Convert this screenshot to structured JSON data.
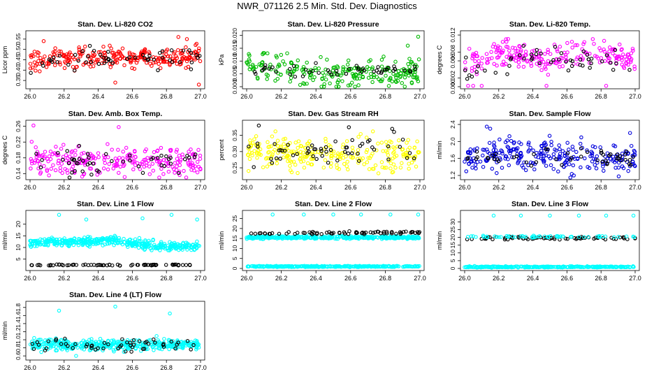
{
  "main_title": "NWR_071126  2.5 Min. Std. Dev. Diagnostics",
  "chart_data": [
    {
      "type": "scatter",
      "title": "Stan. Dev. Li-820 CO2",
      "ylabel": "Licor ppm",
      "xlim": [
        26.0,
        27.0
      ],
      "ylim": [
        0.32,
        0.58
      ],
      "x_ticks": [
        "26.0",
        "26.2",
        "26.4",
        "26.6",
        "26.8",
        "27.0"
      ],
      "y_ticks": [
        0.35,
        0.4,
        0.45,
        0.5,
        0.55
      ],
      "y_tick_labels": [
        "0.35",
        "0.40",
        "0.45",
        "0.50",
        "0.55"
      ],
      "series": [
        {
          "name": "primary",
          "color": "#ff0000",
          "center": [
            0.45,
            0.47
          ],
          "spread": 0.025,
          "n": 260,
          "x": [],
          "y": []
        },
        {
          "name": "reference",
          "color": "#000000",
          "center": [
            0.44,
            0.47
          ],
          "spread": 0.025,
          "n": 55,
          "x": [],
          "y": []
        }
      ],
      "outliers": {
        "x": [
          26.08,
          26.5,
          26.87,
          26.92,
          26.99
        ],
        "y": [
          0.54,
          0.34,
          0.56,
          0.55,
          0.33
        ],
        "color": "#ff0000"
      }
    },
    {
      "type": "scatter",
      "title": "Stan. Dev. Li-820 Pressure",
      "ylabel": "kPa",
      "xlim": [
        26.0,
        27.0
      ],
      "ylim": [
        0.0,
        0.021
      ],
      "x_ticks": [
        "26.0",
        "26.2",
        "26.4",
        "26.6",
        "26.8",
        "27.0"
      ],
      "y_ticks": [
        0.0,
        0.005,
        0.01,
        0.015,
        0.02
      ],
      "y_tick_labels": [
        "0.000",
        "0.005",
        "0.010",
        "0.015",
        "0.020"
      ],
      "series": [
        {
          "name": "primary",
          "color": "#00bb00",
          "center": [
            0.008,
            0.004,
            0.006
          ],
          "spread": 0.0028,
          "n": 240,
          "x": [],
          "y": []
        },
        {
          "name": "reference",
          "color": "#000000",
          "center": [
            0.007,
            0.006,
            0.007
          ],
          "spread": 0.0012,
          "n": 50,
          "x": [],
          "y": []
        }
      ],
      "outliers": {
        "x": [
          26.12,
          26.17,
          26.93,
          26.99
        ],
        "y": [
          0.013,
          0.012,
          0.016,
          0.0195
        ],
        "color": "#00bb00"
      }
    },
    {
      "type": "scatter",
      "title": "Stan. Dev. Li-820 Temp.",
      "ylabel": "degrees C",
      "xlim": [
        26.0,
        27.0
      ],
      "ylim": [
        0.0,
        0.0125
      ],
      "x_ticks": [
        "26.0",
        "26.2",
        "26.4",
        "26.6",
        "26.8",
        "27.0"
      ],
      "y_ticks": [
        0.0,
        0.002,
        0.006,
        0.008,
        0.012
      ],
      "y_tick_labels": [
        "0.000",
        "0.002",
        "0.006",
        "0.008",
        "0.012"
      ],
      "series": [
        {
          "name": "primary",
          "color": "#ff00ff",
          "center": [
            0.005,
            0.008,
            0.006,
            0.009,
            0.006
          ],
          "spread": 0.0014,
          "n": 230,
          "x": [],
          "y": []
        },
        {
          "name": "reference",
          "color": "#000000",
          "center": [
            0.004,
            0.007,
            0.006
          ],
          "spread": 0.0015,
          "n": 50,
          "x": [],
          "y": []
        }
      ],
      "outliers": {
        "x": [
          26.02,
          26.05,
          26.1,
          26.48,
          26.83
        ],
        "y": [
          0.0002,
          0.0002,
          0.0002,
          0.0002,
          0.0002
        ],
        "color": "#ff00ff"
      }
    },
    {
      "type": "scatter",
      "title": "Stan. Dev. Amb. Box Temp.",
      "ylabel": "degrees C",
      "xlim": [
        26.0,
        27.0
      ],
      "ylim": [
        0.13,
        0.27
      ],
      "x_ticks": [
        "26.0",
        "26.2",
        "26.4",
        "26.6",
        "26.8",
        "27.0"
      ],
      "y_ticks": [
        0.14,
        0.18,
        0.22,
        0.26
      ],
      "y_tick_labels": [
        "0.14",
        "0.18",
        "0.22",
        "0.26"
      ],
      "series": [
        {
          "name": "primary",
          "color": "#ff00ff",
          "center": [
            0.175,
            0.17
          ],
          "spread": 0.02,
          "n": 250,
          "x": [],
          "y": []
        },
        {
          "name": "reference",
          "color": "#000000",
          "center": [
            0.165,
            0.17
          ],
          "spread": 0.015,
          "n": 50,
          "x": [],
          "y": []
        }
      ],
      "outliers": {
        "x": [
          26.02,
          26.52,
          26.06
        ],
        "y": [
          0.262,
          0.258,
          0.14
        ],
        "color": "#ff00ff"
      }
    },
    {
      "type": "scatter",
      "title": "Stan. Dev. Gas Stream RH",
      "ylabel": "percent",
      "xlim": [
        26.0,
        27.0
      ],
      "ylim": [
        0.22,
        0.39
      ],
      "x_ticks": [
        "26.0",
        "26.2",
        "26.4",
        "26.6",
        "26.8",
        "27.0"
      ],
      "y_ticks": [
        0.25,
        0.3,
        0.35
      ],
      "y_tick_labels": [
        "0.25",
        "0.30",
        "0.35"
      ],
      "series": [
        {
          "name": "primary",
          "color": "#ffff00",
          "center": [
            0.3,
            0.29
          ],
          "spread": 0.025,
          "n": 260,
          "x": [],
          "y": []
        },
        {
          "name": "reference",
          "color": "#000000",
          "center": [
            0.29,
            0.3
          ],
          "spread": 0.025,
          "n": 55,
          "x": [],
          "y": []
        }
      ],
      "outliers": {
        "x": [
          26.07,
          26.59,
          26.84
        ],
        "y": [
          0.38,
          0.375,
          0.37
        ],
        "color": "#000000"
      }
    },
    {
      "type": "scatter",
      "title": "Stan. Dev. Sample Flow",
      "ylabel": "ml/min",
      "xlim": [
        26.0,
        27.0
      ],
      "ylim": [
        1.15,
        2.45
      ],
      "x_ticks": [
        "26.0",
        "26.2",
        "26.4",
        "26.6",
        "26.8",
        "27.0"
      ],
      "y_ticks": [
        1.2,
        1.6,
        2.0,
        2.4
      ],
      "y_tick_labels": [
        "1.2",
        "1.6",
        "2.0",
        "2.4"
      ],
      "series": [
        {
          "name": "primary",
          "color": "#0000dd",
          "center": [
            1.55,
            1.75,
            1.65,
            1.6,
            1.6
          ],
          "spread": 0.17,
          "n": 270,
          "x": [],
          "y": []
        },
        {
          "name": "reference",
          "color": "#000000",
          "center": [
            1.6,
            1.65
          ],
          "spread": 0.12,
          "n": 50,
          "x": [],
          "y": []
        }
      ],
      "outliers": {
        "x": [
          26.13,
          26.15,
          26.62,
          26.64,
          26.97
        ],
        "y": [
          2.35,
          2.3,
          1.15,
          1.2,
          2.2
        ],
        "color": "#0000dd"
      }
    },
    {
      "type": "scatter",
      "title": "Stan. Dev. Line 1 Flow",
      "ylabel": "ml/min",
      "xlim": [
        26.0,
        27.0
      ],
      "ylim": [
        1,
        25
      ],
      "x_ticks": [
        "26.0",
        "26.2",
        "26.4",
        "26.6",
        "26.8",
        "27.0"
      ],
      "y_ticks": [
        5,
        10,
        15,
        20
      ],
      "y_tick_labels": [
        "5",
        "10",
        "15",
        "20"
      ],
      "series": [
        {
          "name": "primary",
          "color": "#00ffff",
          "center": [
            12,
            12.5,
            13,
            10.5,
            10.5
          ],
          "spread": 0.9,
          "n": 420,
          "x": [],
          "y": []
        },
        {
          "name": "reference",
          "color": "#000000",
          "center": [
            2.5
          ],
          "spread": 0.15,
          "n": 70,
          "x": [],
          "y": []
        }
      ],
      "outliers": {
        "x": [
          26.17,
          26.33,
          26.66,
          26.83,
          26.98
        ],
        "y": [
          24,
          22,
          22.5,
          24,
          22
        ],
        "color": "#00ffff"
      }
    },
    {
      "type": "scatter",
      "title": "Stan. Dev. Line 2 Flow",
      "ylabel": "ml/min",
      "xlim": [
        26.0,
        27.0
      ],
      "ylim": [
        0,
        28
      ],
      "x_ticks": [
        "26.0",
        "26.2",
        "26.4",
        "26.6",
        "26.8",
        "27.0"
      ],
      "y_ticks": [
        0,
        5,
        10,
        15,
        20,
        25
      ],
      "y_tick_labels": [
        "0",
        "5",
        "10",
        "15",
        "20",
        "25"
      ],
      "series": [
        {
          "name": "primary",
          "color": "#00ffff",
          "center": [
            15.5
          ],
          "spread": 0.35,
          "n": 380,
          "x": [],
          "y": []
        },
        {
          "name": "reference",
          "color": "#000000",
          "center": [
            17.5,
            18.2
          ],
          "spread": 0.35,
          "n": 70,
          "x": [],
          "y": []
        },
        {
          "name": "low",
          "color": "#00ffff",
          "center": [
            1.0
          ],
          "spread": 0.15,
          "n": 300,
          "x": [],
          "y": []
        }
      ],
      "outliers": {
        "x": [
          26.15,
          26.33,
          26.5,
          26.66,
          26.83,
          26.99
        ],
        "y": [
          27,
          27,
          27,
          27,
          27,
          27
        ],
        "color": "#00ffff"
      }
    },
    {
      "type": "scatter",
      "title": "Stan. Dev. Line 3 Flow",
      "ylabel": "ml/min",
      "xlim": [
        26.0,
        27.0
      ],
      "ylim": [
        0,
        36
      ],
      "x_ticks": [
        "26.0",
        "26.2",
        "26.4",
        "26.6",
        "26.8",
        "27.0"
      ],
      "y_ticks": [
        0,
        5,
        10,
        15,
        20,
        25,
        30
      ],
      "y_tick_labels": [
        "0",
        "5",
        "10",
        "15",
        "20",
        "25",
        "30"
      ],
      "series": [
        {
          "name": "reference",
          "color": "#000000",
          "center": [
            19.5
          ],
          "spread": 0.45,
          "n": 70,
          "x": [],
          "y": []
        },
        {
          "name": "secondary",
          "color": "#00ffff",
          "center": [
            20.5
          ],
          "spread": 0.3,
          "n": 60,
          "x": [],
          "y": []
        },
        {
          "name": "low",
          "color": "#00ffff",
          "center": [
            1.0
          ],
          "spread": 0.2,
          "n": 300,
          "x": [],
          "y": []
        }
      ],
      "outliers": {
        "x": [
          26.17,
          26.33,
          26.5,
          26.67,
          26.83,
          26.99
        ],
        "y": [
          34,
          34,
          34,
          34,
          34,
          34
        ],
        "color": "#00ffff"
      }
    },
    {
      "type": "scatter",
      "title": "Stan. Dev. Line 4 (LT) Flow",
      "ylabel": "ml/min",
      "xlim": [
        26.0,
        27.0
      ],
      "ylim": [
        0.55,
        1.9
      ],
      "x_ticks": [
        "26.0",
        "26.2",
        "26.4",
        "26.6",
        "26.8",
        "27.0"
      ],
      "y_ticks": [
        0.6,
        0.8,
        1.0,
        1.2,
        1.4,
        1.6,
        1.8
      ],
      "y_tick_labels": [
        "0.6",
        "0.8",
        "1.0",
        "1.2",
        "1.4",
        "1.6",
        "1.8"
      ],
      "series": [
        {
          "name": "primary",
          "color": "#00ffff",
          "center": [
            0.87,
            0.88
          ],
          "spread": 0.07,
          "n": 380,
          "x": [],
          "y": []
        },
        {
          "name": "reference",
          "color": "#000000",
          "center": [
            0.85,
            0.88
          ],
          "spread": 0.08,
          "n": 55,
          "x": [],
          "y": []
        }
      ],
      "outliers": {
        "x": [
          26.17,
          26.5,
          26.82,
          26.27
        ],
        "y": [
          1.72,
          1.82,
          1.65,
          0.6
        ],
        "color": "#00ffff"
      }
    }
  ]
}
